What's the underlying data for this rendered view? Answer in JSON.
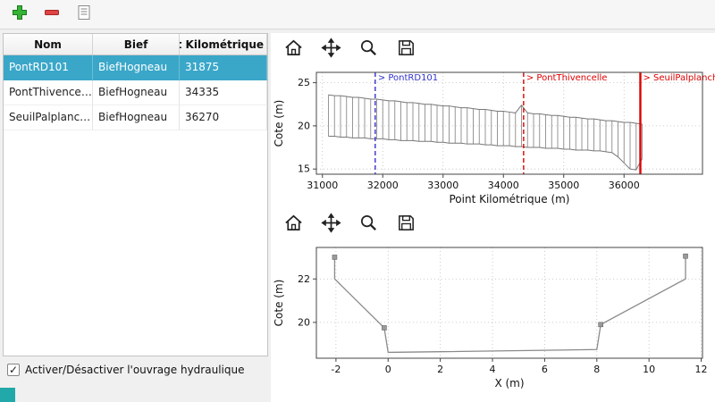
{
  "window": {
    "background": "#f0f0f0"
  },
  "colors": {
    "selection": "#3aa7c9",
    "accent_square": "#21a8a8",
    "annotation_blue": "#3333cc",
    "annotation_red": "#dd0000",
    "plot_line_gray": "#8a8a8a"
  },
  "main_toolbar": {
    "icons": [
      "add-icon",
      "remove-icon",
      "edit-icon"
    ]
  },
  "mpl_toolbar": {
    "icons": [
      "home-icon",
      "pan-icon",
      "zoom-icon",
      "save-icon"
    ]
  },
  "table": {
    "columns": [
      "Nom",
      "Bief",
      "Point Kilométrique"
    ],
    "rows": [
      {
        "nom": "PontRD101",
        "bief": "BiefHogneau",
        "pk": "31875",
        "selected": true
      },
      {
        "nom": "PontThivencelle",
        "bief": "BiefHogneau",
        "pk": "34335",
        "selected": false
      },
      {
        "nom": "SeuilPalplanches",
        "bief": "BiefHogneau",
        "pk": "36270",
        "selected": false
      }
    ]
  },
  "checkbox": {
    "label": "Activer/Désactiver l'ouvrage hydraulique",
    "checked": true,
    "check_glyph": "✓"
  },
  "chart_data": [
    {
      "type": "line",
      "title": "",
      "xlabel": "Point Kilométrique (m)",
      "ylabel": "Cote (m)",
      "xlim": [
        30900,
        37300
      ],
      "ylim": [
        14.4,
        26.2
      ],
      "xticks": [
        31000,
        32000,
        33000,
        34000,
        35000,
        36000
      ],
      "yticks": [
        15,
        20,
        25
      ],
      "grid": true,
      "sections": {
        "x": [
          31100,
          31200,
          31300,
          31400,
          31500,
          31600,
          31700,
          31800,
          31900,
          32000,
          32100,
          32200,
          32300,
          32400,
          32500,
          32600,
          32700,
          32800,
          32900,
          33000,
          33100,
          33200,
          33300,
          33400,
          33500,
          33600,
          33700,
          33800,
          33900,
          34000,
          34100,
          34200,
          34300,
          34400,
          34500,
          34600,
          34700,
          34800,
          34900,
          35000,
          35100,
          35200,
          35300,
          35400,
          35500,
          35600,
          35700,
          35800,
          35900,
          36000,
          36100,
          36200,
          36300
        ],
        "top": [
          23.6,
          23.5,
          23.5,
          23.4,
          23.3,
          23.3,
          23.2,
          23.1,
          23.1,
          23.0,
          22.9,
          22.9,
          22.8,
          22.7,
          22.7,
          22.6,
          22.5,
          22.5,
          22.4,
          22.3,
          22.3,
          22.2,
          22.1,
          22.1,
          22.0,
          21.9,
          21.9,
          21.8,
          21.7,
          21.7,
          21.6,
          21.5,
          22.4,
          21.5,
          21.4,
          21.4,
          21.3,
          21.2,
          21.2,
          21.1,
          21.0,
          21.0,
          20.9,
          20.8,
          20.8,
          20.7,
          20.6,
          20.6,
          20.5,
          20.4,
          20.4,
          20.3,
          20.2
        ],
        "bottom": [
          18.8,
          18.8,
          18.7,
          18.7,
          18.6,
          18.6,
          18.6,
          18.5,
          18.5,
          18.5,
          18.4,
          18.4,
          18.3,
          18.3,
          18.3,
          18.2,
          18.2,
          18.2,
          18.1,
          18.1,
          18.0,
          18.0,
          18.0,
          17.9,
          17.9,
          17.9,
          17.8,
          17.8,
          17.7,
          17.7,
          17.7,
          17.6,
          17.6,
          17.5,
          17.5,
          17.5,
          17.4,
          17.4,
          17.4,
          17.3,
          17.3,
          17.2,
          17.2,
          17.2,
          17.1,
          17.1,
          17.0,
          16.9,
          16.4,
          15.7,
          15.0,
          14.9,
          16.2
        ]
      },
      "annotations": [
        {
          "x": 31875,
          "label": "> PontRD101",
          "color": "#3333cc",
          "style": "dashed"
        },
        {
          "x": 34335,
          "label": "> PontThivencelle",
          "color": "#dd0000",
          "style": "dashed"
        },
        {
          "x": 36270,
          "label": "> SeuilPalplanches",
          "color": "#dd0000",
          "style": "solid"
        }
      ]
    },
    {
      "type": "line",
      "title": "",
      "xlabel": "X (m)",
      "ylabel": "Cote (m)",
      "xlim": [
        -2.75,
        12.05
      ],
      "ylim": [
        18.35,
        23.45
      ],
      "xticks": [
        -2,
        0,
        2,
        4,
        6,
        8,
        10,
        12
      ],
      "yticks": [
        20,
        22
      ],
      "grid": true,
      "x": [
        -2.05,
        -2.05,
        -0.15,
        0.0,
        2.0,
        8.0,
        8.15,
        11.4,
        11.4
      ],
      "y": [
        23.0,
        22.0,
        19.75,
        18.62,
        18.65,
        18.75,
        19.9,
        22.0,
        23.05
      ],
      "marker_indices": [
        0,
        2,
        6,
        8
      ],
      "annotations": []
    }
  ]
}
